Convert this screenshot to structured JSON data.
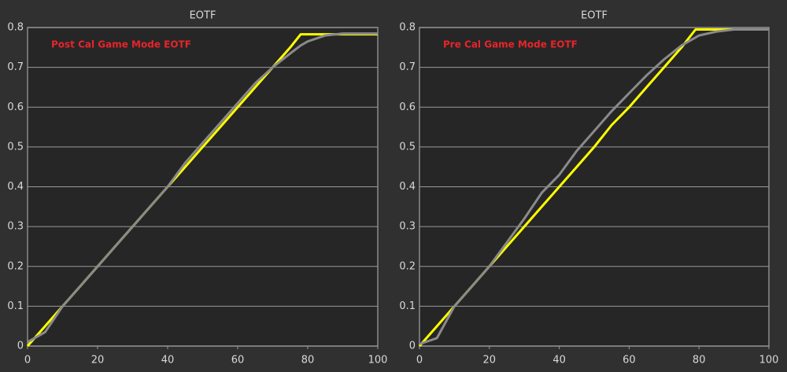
{
  "chart_data": [
    {
      "type": "line",
      "title": "EOTF",
      "annotation": "Post Cal Game Mode EOTF",
      "x": [
        0,
        5,
        10,
        15,
        20,
        25,
        30,
        35,
        40,
        45,
        50,
        55,
        60,
        65,
        70,
        75,
        78,
        80,
        85,
        90,
        95,
        100
      ],
      "series": [
        {
          "color": "#ffff00",
          "values": [
            0,
            0.05,
            0.1,
            0.15,
            0.2,
            0.25,
            0.3,
            0.35,
            0.4,
            0.45,
            0.5,
            0.55,
            0.6,
            0.65,
            0.7,
            0.75,
            0.783,
            0.783,
            0.783,
            0.783,
            0.783,
            0.783
          ]
        },
        {
          "color": "#8a8a8a",
          "values": [
            0.01,
            0.035,
            0.1,
            0.15,
            0.2,
            0.25,
            0.3,
            0.35,
            0.4,
            0.46,
            0.51,
            0.56,
            0.61,
            0.66,
            0.7,
            0.735,
            0.755,
            0.765,
            0.78,
            0.785,
            0.785,
            0.785
          ]
        }
      ],
      "xlim": [
        0,
        100
      ],
      "ylim": [
        0,
        0.8
      ],
      "xticks": [
        0,
        20,
        40,
        60,
        80,
        100
      ],
      "yticks": [
        0,
        0.1,
        0.2,
        0.3,
        0.4,
        0.5,
        0.6,
        0.7,
        0.8
      ],
      "grid": true
    },
    {
      "type": "line",
      "title": "EOTF",
      "annotation": "Pre Cal Game Mode EOTF",
      "x": [
        0,
        5,
        10,
        15,
        20,
        25,
        30,
        35,
        40,
        45,
        50,
        55,
        60,
        65,
        70,
        75,
        79,
        80,
        85,
        90,
        95,
        100
      ],
      "series": [
        {
          "color": "#ffff00",
          "values": [
            0,
            0.05,
            0.1,
            0.15,
            0.2,
            0.25,
            0.3,
            0.35,
            0.4,
            0.45,
            0.5,
            0.555,
            0.6,
            0.65,
            0.7,
            0.75,
            0.795,
            0.795,
            0.795,
            0.795,
            0.795,
            0.795
          ]
        },
        {
          "color": "#8a8a8a",
          "values": [
            0.005,
            0.02,
            0.1,
            0.15,
            0.2,
            0.26,
            0.32,
            0.385,
            0.43,
            0.49,
            0.54,
            0.59,
            0.635,
            0.68,
            0.72,
            0.755,
            0.775,
            0.78,
            0.79,
            0.795,
            0.795,
            0.795
          ]
        }
      ],
      "xlim": [
        0,
        100
      ],
      "ylim": [
        0,
        0.8
      ],
      "xticks": [
        0,
        20,
        40,
        60,
        80,
        100
      ],
      "yticks": [
        0,
        0.1,
        0.2,
        0.3,
        0.4,
        0.5,
        0.6,
        0.7,
        0.8
      ],
      "grid": true
    }
  ]
}
